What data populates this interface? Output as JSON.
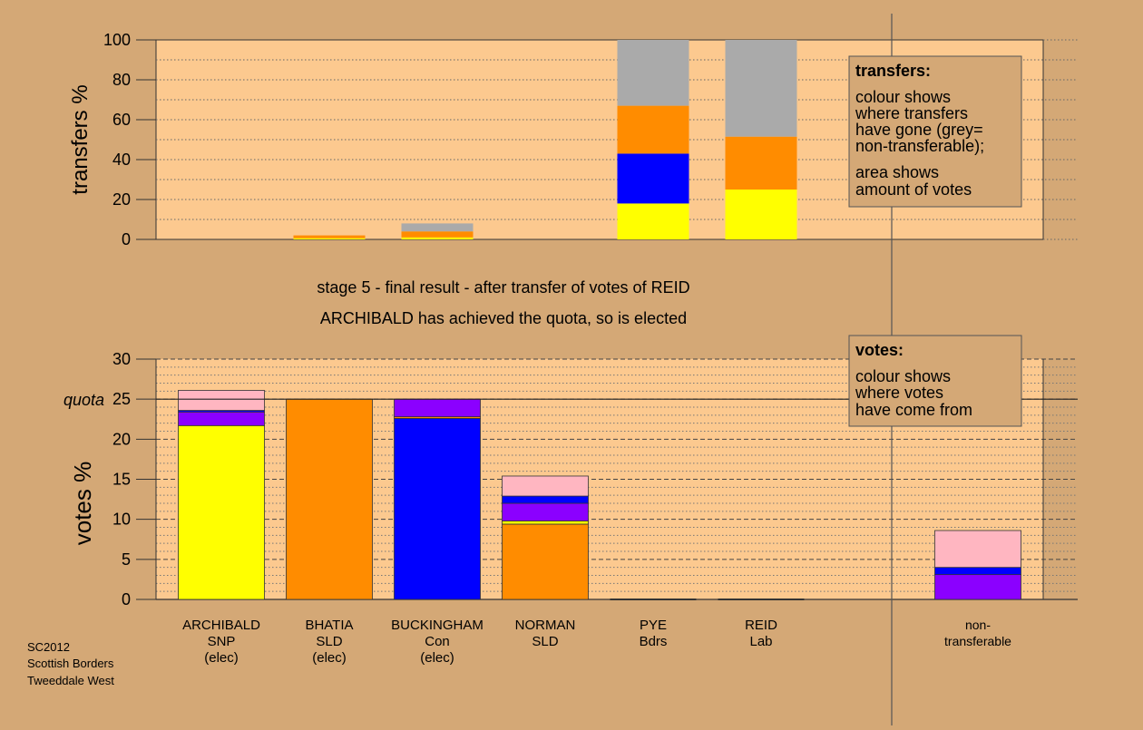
{
  "colors": {
    "background": "#d4a876",
    "plot_bg": "#fcc98f",
    "SNP": "#ffff00",
    "SLD": "#ff8c00",
    "Con": "#0000ff",
    "Lab": "#ff8c00",
    "Bdrs": "#8b00ff",
    "Ind": "#ffb6c1",
    "nontransferable": "#aaaaaa"
  },
  "headings": {
    "stage": "stage 5 - final result - after transfer of votes of REID",
    "result": "ARCHIBALD has achieved the quota, so is elected"
  },
  "footer": {
    "line1": "SC2012",
    "line2": "Scottish Borders",
    "line3": "Tweeddale West"
  },
  "legend_transfers": {
    "title": "transfers:",
    "line1": "colour shows",
    "line2": "where transfers",
    "line3": "have gone (grey=",
    "line4": "non-transferable);",
    "line5": "area shows",
    "line6": "amount of votes"
  },
  "legend_votes": {
    "title": "votes:",
    "line1": "colour shows",
    "line2": "where votes",
    "line3": "have come from"
  },
  "quota_label": "quota",
  "chart_data": [
    {
      "type": "bar",
      "stacked": true,
      "ylabel": "transfers %",
      "ylim": [
        0,
        100
      ],
      "yticks": [
        0,
        20,
        40,
        60,
        80,
        100
      ],
      "grid": true,
      "legend_placement": "top-right",
      "categories": [
        "ARCHIBALD",
        "BHATIA",
        "BUCKINGHAM",
        "NORMAN",
        "PYE",
        "REID"
      ],
      "bars": [
        {
          "category": "ARCHIBALD",
          "segments": []
        },
        {
          "category": "BHATIA",
          "segments": [
            {
              "color": "#ffff00",
              "value": 0.6
            },
            {
              "color": "#ff8c00",
              "value": 1.4
            }
          ]
        },
        {
          "category": "BUCKINGHAM",
          "segments": [
            {
              "color": "#ffff00",
              "value": 1
            },
            {
              "color": "#ff8c00",
              "value": 3
            },
            {
              "color": "#aaaaaa",
              "value": 4
            }
          ]
        },
        {
          "category": "NORMAN",
          "segments": []
        },
        {
          "category": "PYE",
          "segments": [
            {
              "color": "#ffff00",
              "value": 18
            },
            {
              "color": "#0000ff",
              "value": 25
            },
            {
              "color": "#ff8c00",
              "value": 24
            },
            {
              "color": "#aaaaaa",
              "value": 33
            }
          ]
        },
        {
          "category": "REID",
          "segments": [
            {
              "color": "#ffff00",
              "value": 25
            },
            {
              "color": "#ff8c00",
              "value": 26.5
            },
            {
              "color": "#aaaaaa",
              "value": 48.5
            }
          ]
        }
      ]
    },
    {
      "type": "bar",
      "stacked": true,
      "ylabel": "votes %",
      "ylim": [
        0,
        30
      ],
      "yticks": [
        0,
        5,
        10,
        15,
        20,
        25,
        30
      ],
      "quota": 25,
      "grid": true,
      "legend_placement": "top-right",
      "categories": [
        "ARCHIBALD",
        "BHATIA",
        "BUCKINGHAM",
        "NORMAN",
        "PYE",
        "REID",
        "non-transferable"
      ],
      "bars": [
        {
          "category": "ARCHIBALD",
          "label_lines": [
            "ARCHIBALD",
            "SNP",
            "(elec)"
          ],
          "segments": [
            {
              "color": "#ffff00",
              "value": 21.7
            },
            {
              "color": "#8b00ff",
              "value": 1.7
            },
            {
              "color": "#0000ff",
              "value": 0.2
            },
            {
              "color": "#ffb6c1",
              "value": 2.5
            }
          ]
        },
        {
          "category": "BHATIA",
          "label_lines": [
            "BHATIA",
            "SLD",
            "(elec)"
          ],
          "segments": [
            {
              "color": "#ff8c00",
              "value": 25
            }
          ]
        },
        {
          "category": "BUCKINGHAM",
          "label_lines": [
            "BUCKINGHAM",
            "Con",
            "(elec)"
          ],
          "segments": [
            {
              "color": "#0000ff",
              "value": 22.6
            },
            {
              "color": "#ff8c00",
              "value": 0.2
            },
            {
              "color": "#8b00ff",
              "value": 2.2
            }
          ]
        },
        {
          "category": "NORMAN",
          "label_lines": [
            "NORMAN",
            "SLD"
          ],
          "segments": [
            {
              "color": "#ff8c00",
              "value": 9.4
            },
            {
              "color": "#ffff00",
              "value": 0.4
            },
            {
              "color": "#8b00ff",
              "value": 2.2
            },
            {
              "color": "#0000ff",
              "value": 0.9
            },
            {
              "color": "#ffb6c1",
              "value": 2.5
            }
          ]
        },
        {
          "category": "PYE",
          "label_lines": [
            "PYE",
            "Bdrs"
          ],
          "segments": []
        },
        {
          "category": "REID",
          "label_lines": [
            "REID",
            "Lab"
          ],
          "segments": []
        },
        {
          "category": "non-transferable",
          "label_lines": [
            "non-",
            "transferable"
          ],
          "segments": [
            {
              "color": "#8b00ff",
              "value": 3.1
            },
            {
              "color": "#0000ff",
              "value": 0.9
            },
            {
              "color": "#ffb6c1",
              "value": 4.6
            }
          ]
        }
      ]
    }
  ]
}
